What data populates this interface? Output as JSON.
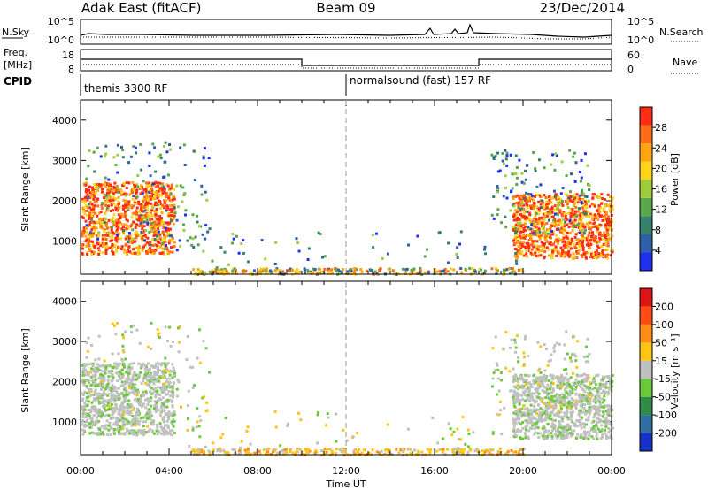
{
  "header": {
    "station": "Adak East (fitACF)",
    "beam": "Beam 09",
    "date": "23/Dec/2014"
  },
  "top_panels": {
    "nsky_label": "N.Sky",
    "nsky_ticks": [
      "10^5",
      "10^0"
    ],
    "nsearch_label": "N.Search",
    "nsearch_ticks": [
      "10^5",
      "10^0"
    ],
    "freq_label_1": "Freq.",
    "freq_label_2": "[MHz]",
    "freq_ticks": [
      "18",
      "8"
    ],
    "nave_label": "Nave",
    "nave_ticks": [
      "60",
      "0"
    ],
    "cpid_label": "CPID",
    "cpid_segments": [
      {
        "start_hour": 0,
        "label": "themis 3300 RF"
      },
      {
        "start_hour": 12,
        "label": "normalsound (fast) 157 RF"
      }
    ]
  },
  "chart_data": [
    {
      "type": "heatmap",
      "name": "power",
      "xlabel": "",
      "ylabel": "Slant Range [km]",
      "colorbar_label": "Power [dB]",
      "x_unit": "hours UT",
      "xlim": [
        0,
        24
      ],
      "ylim": [
        180,
        4500
      ],
      "ytick_labels": [
        "1000",
        "2000",
        "3000",
        "4000"
      ],
      "colorbar_ticks": [
        "4",
        "8",
        "12",
        "16",
        "20",
        "24",
        "28"
      ],
      "colorbar_colors": [
        "#1e2ff0",
        "#2f5fa8",
        "#35806a",
        "#5aa64a",
        "#9fcd3a",
        "#ffd41a",
        "#ffa514",
        "#ff6a14",
        "#ff2b14"
      ]
    },
    {
      "type": "heatmap",
      "name": "velocity",
      "xlabel": "Time UT",
      "ylabel": "Slant Range [km]",
      "colorbar_label": "Velocity [m s⁻¹]",
      "x_unit": "hours UT",
      "xlim": [
        0,
        24
      ],
      "ylim": [
        180,
        4500
      ],
      "ytick_labels": [
        "1000",
        "2000",
        "3000",
        "4000"
      ],
      "colorbar_ticks": [
        "200",
        "100",
        "50",
        "15",
        "-15",
        "-50",
        "-100",
        "-200"
      ],
      "colorbar_colors": [
        "#1432c8",
        "#2f6ea0",
        "#2f8c46",
        "#6cc93a",
        "#c0c0c0",
        "#ffc414",
        "#ff8c14",
        "#ff4a14",
        "#e01414"
      ]
    }
  ],
  "time_axis": {
    "tick_labels": [
      "00:00",
      "04:00",
      "08:00",
      "12:00",
      "16:00",
      "20:00",
      "00:00"
    ],
    "label": "Time UT"
  }
}
